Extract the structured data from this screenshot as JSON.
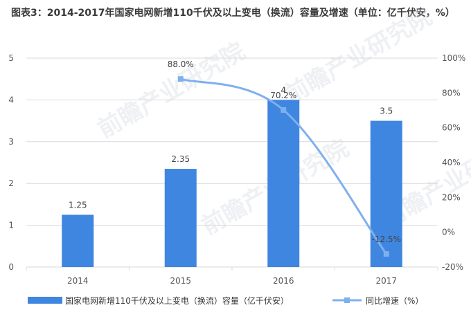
{
  "title": "图表3：2014-2017年国家电网新增110千伏及以上变电（换流）容量及增速（单位：亿千伏安，%）",
  "watermark": "前瞻产业研究院",
  "chart_data": {
    "type": "bar",
    "categories": [
      "2014",
      "2015",
      "2016",
      "2017"
    ],
    "series": [
      {
        "name": "国家电网新增110千伏及以上变电（换流）容量（亿千伏安）",
        "type": "bar",
        "axis": "left",
        "color": "#3f86e0",
        "values": [
          1.25,
          2.35,
          4,
          3.5
        ],
        "labels": [
          "1.25",
          "2.35",
          "4",
          "3.5"
        ]
      },
      {
        "name": "同比增速（%）",
        "type": "line",
        "axis": "right",
        "color": "#7eb0ef",
        "values": [
          null,
          88.0,
          70.2,
          -12.5
        ],
        "labels": [
          "",
          "88.0%",
          "70.2%",
          "-12.5%"
        ]
      }
    ],
    "y_left": {
      "ylim": [
        0,
        5
      ],
      "ticks": [
        "0",
        "1",
        "2",
        "3",
        "4",
        "5"
      ]
    },
    "y_right": {
      "ylim": [
        -20,
        100
      ],
      "ticks": [
        "-20%",
        "0%",
        "20%",
        "40%",
        "60%",
        "80%",
        "100%"
      ]
    },
    "grid": true,
    "legend": "bottom"
  }
}
